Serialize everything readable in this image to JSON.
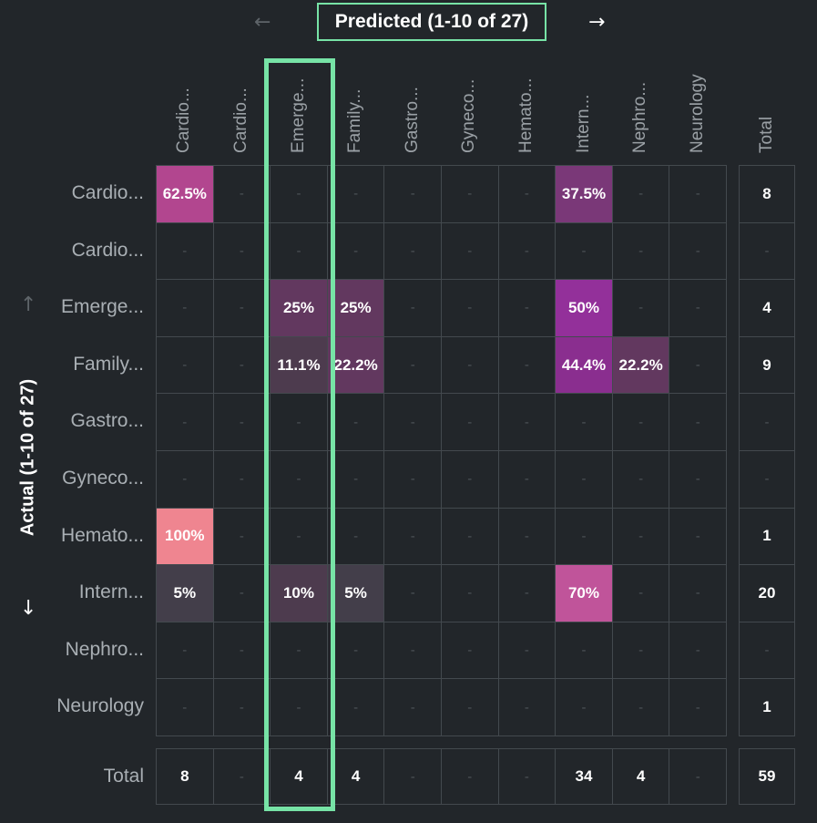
{
  "header": {
    "title": "Predicted (1-10 of 27)",
    "prev_arrow": "←",
    "next_arrow": "→"
  },
  "side": {
    "label": "Actual (1-10 of 27)",
    "up_arrow": "↑",
    "down_arrow": "↓"
  },
  "colors": {
    "background": "#22262a",
    "highlight": "#77e3a6",
    "grid": "#43494e",
    "empty_text": "#4d5358"
  },
  "chart_data": {
    "type": "heatmap",
    "x_title": "Predicted (1-10 of 27)",
    "y_title": "Actual (1-10 of 27)",
    "columns": [
      "Cardio...",
      "Cardio...",
      "Emerge...",
      "Family...",
      "Gastro...",
      "Gyneco...",
      "Hemato...",
      "Intern...",
      "Nephro...",
      "Neurology"
    ],
    "rows": [
      "Cardio...",
      "Cardio...",
      "Emerge...",
      "Family...",
      "Gastro...",
      "Gyneco...",
      "Hemato...",
      "Intern...",
      "Nephro...",
      "Neurology"
    ],
    "empty_marker": "-",
    "total_label": "Total",
    "cells": [
      [
        "62.5%",
        "-",
        "-",
        "-",
        "-",
        "-",
        "-",
        "37.5%",
        "-",
        "-"
      ],
      [
        "-",
        "-",
        "-",
        "-",
        "-",
        "-",
        "-",
        "-",
        "-",
        "-"
      ],
      [
        "-",
        "-",
        "25%",
        "25%",
        "-",
        "-",
        "-",
        "50%",
        "-",
        "-"
      ],
      [
        "-",
        "-",
        "11.1%",
        "22.2%",
        "-",
        "-",
        "-",
        "44.4%",
        "22.2%",
        "-"
      ],
      [
        "-",
        "-",
        "-",
        "-",
        "-",
        "-",
        "-",
        "-",
        "-",
        "-"
      ],
      [
        "-",
        "-",
        "-",
        "-",
        "-",
        "-",
        "-",
        "-",
        "-",
        "-"
      ],
      [
        "100%",
        "-",
        "-",
        "-",
        "-",
        "-",
        "-",
        "-",
        "-",
        "-"
      ],
      [
        "5%",
        "-",
        "10%",
        "5%",
        "-",
        "-",
        "-",
        "70%",
        "-",
        "-"
      ],
      [
        "-",
        "-",
        "-",
        "-",
        "-",
        "-",
        "-",
        "-",
        "-",
        "-"
      ],
      [
        "-",
        "-",
        "-",
        "-",
        "-",
        "-",
        "-",
        "-",
        "-",
        "-"
      ]
    ],
    "cell_colors": [
      [
        "#b2468f",
        null,
        null,
        null,
        null,
        null,
        null,
        "#7a3878",
        null,
        null
      ],
      [
        null,
        null,
        null,
        null,
        null,
        null,
        null,
        null,
        null,
        null
      ],
      [
        null,
        null,
        "#62385f",
        "#62385f",
        null,
        null,
        null,
        "#93309a",
        null,
        null
      ],
      [
        null,
        null,
        "#4d3b4e",
        "#62385f",
        null,
        null,
        null,
        "#8a2e8f",
        "#62385f",
        null
      ],
      [
        null,
        null,
        null,
        null,
        null,
        null,
        null,
        null,
        null,
        null
      ],
      [
        null,
        null,
        null,
        null,
        null,
        null,
        null,
        null,
        null,
        null
      ],
      [
        "#ef8590",
        null,
        null,
        null,
        null,
        null,
        null,
        null,
        null,
        null
      ],
      [
        "#433e4a",
        null,
        "#4d3b4e",
        "#433e4a",
        null,
        null,
        null,
        "#c0549a",
        null,
        null
      ],
      [
        null,
        null,
        null,
        null,
        null,
        null,
        null,
        null,
        null,
        null
      ],
      [
        null,
        null,
        null,
        null,
        null,
        null,
        null,
        null,
        null,
        null
      ]
    ],
    "row_totals": [
      "8",
      "-",
      "4",
      "9",
      "-",
      "-",
      "1",
      "20",
      "-",
      "1"
    ],
    "column_totals": [
      "8",
      "-",
      "4",
      "4",
      "-",
      "-",
      "-",
      "34",
      "4",
      "-"
    ],
    "grand_total": "59",
    "highlighted_column": "Emerge..."
  }
}
